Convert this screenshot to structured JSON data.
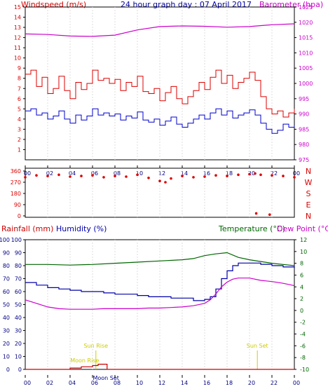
{
  "colors": {
    "wind_speed": "#dd0000",
    "wind_gust": "#dd0000",
    "wind_avg": "#0000cc",
    "barometer": "#cc00cc",
    "direction": "#dd0000",
    "rainfall": "#cc0000",
    "humidity": "#0000aa",
    "temperature": "#006600",
    "dewpoint": "#cc00cc",
    "sun": "#cccc00",
    "frame": "#000000"
  },
  "chart_data": [
    {
      "type": "line",
      "title": "24 hour graph day : 07 April 2017",
      "left_label": "Windspeed (m/s)",
      "right_label": "Barometer (hpa)",
      "ylim_left": [
        0,
        15
      ],
      "ylim_right": [
        975,
        1025
      ],
      "left_ticks": [
        "1",
        "2",
        "3",
        "4",
        "5",
        "6",
        "7",
        "8",
        "9",
        "10",
        "11",
        "12",
        "13",
        "14",
        "15"
      ],
      "right_ticks": [
        "975",
        "980",
        "985",
        "990",
        "995",
        "1000",
        "1005",
        "1010",
        "1015",
        "1020",
        "1025"
      ],
      "x_ticks": [
        "00",
        "02",
        "04",
        "06",
        "08",
        "10",
        "12",
        "14",
        "16",
        "18",
        "20",
        "22",
        "00"
      ],
      "x_hours": [
        0,
        24
      ],
      "series": [
        {
          "key": "gust",
          "hours": [
            0,
            0.5,
            1,
            1.5,
            2,
            2.5,
            3,
            3.5,
            4,
            4.5,
            5,
            5.5,
            6,
            6.5,
            7,
            7.5,
            8,
            8.5,
            9,
            9.5,
            10,
            10.5,
            11,
            11.5,
            12,
            12.5,
            13,
            13.5,
            14,
            14.5,
            15,
            15.5,
            16,
            16.5,
            17,
            17.5,
            18,
            18.5,
            19,
            19.5,
            20,
            20.5,
            21,
            21.5,
            22,
            22.5,
            23,
            23.5,
            24
          ],
          "values": [
            8.4,
            8.8,
            7.2,
            8.1,
            6.5,
            7.0,
            8.2,
            6.8,
            6.0,
            7.6,
            6.9,
            7.5,
            8.8,
            7.8,
            8.0,
            7.5,
            7.9,
            6.8,
            7.6,
            7.2,
            8.2,
            6.7,
            6.5,
            7.0,
            5.8,
            6.6,
            7.2,
            6.0,
            5.5,
            6.2,
            6.8,
            7.6,
            6.9,
            8.1,
            8.8,
            7.5,
            8.3,
            7.0,
            7.6,
            8.0,
            8.6,
            7.8,
            6.2,
            5.0,
            4.5,
            4.8,
            4.2,
            4.6,
            5.0
          ]
        },
        {
          "key": "avg",
          "hours": [
            0,
            0.5,
            1,
            1.5,
            2,
            2.5,
            3,
            3.5,
            4,
            4.5,
            5,
            5.5,
            6,
            6.5,
            7,
            7.5,
            8,
            8.5,
            9,
            9.5,
            10,
            10.5,
            11,
            11.5,
            12,
            12.5,
            13,
            13.5,
            14,
            14.5,
            15,
            15.5,
            16,
            16.5,
            17,
            17.5,
            18,
            18.5,
            19,
            19.5,
            20,
            20.5,
            21,
            21.5,
            22,
            22.5,
            23,
            23.5,
            24
          ],
          "values": [
            4.8,
            5.0,
            4.4,
            4.6,
            4.0,
            4.3,
            4.8,
            4.0,
            3.6,
            4.4,
            3.9,
            4.3,
            5.0,
            4.4,
            4.6,
            4.3,
            4.5,
            3.9,
            4.3,
            4.1,
            4.7,
            3.9,
            3.7,
            4.0,
            3.4,
            3.8,
            4.2,
            3.5,
            3.2,
            3.6,
            4.0,
            4.4,
            4.0,
            4.6,
            5.0,
            4.4,
            4.8,
            4.1,
            4.4,
            4.6,
            4.9,
            4.4,
            3.6,
            3.0,
            2.6,
            2.9,
            3.5,
            3.2,
            3.3
          ]
        },
        {
          "key": "baro",
          "hours": [
            0,
            2,
            4,
            6,
            8,
            10,
            12,
            14,
            16,
            18,
            20,
            22,
            24
          ],
          "values": [
            1016.2,
            1016.0,
            1015.5,
            1015.4,
            1015.8,
            1017.5,
            1018.6,
            1018.8,
            1018.7,
            1018.4,
            1018.6,
            1019.2,
            1019.5
          ]
        }
      ]
    },
    {
      "type": "scatter",
      "ylim": [
        0,
        360
      ],
      "left_ticks": [
        "0",
        "90",
        "180",
        "270",
        "360"
      ],
      "compass": [
        "N",
        "W",
        "S",
        "E",
        "N"
      ],
      "x_hours": [
        0,
        24
      ],
      "series": [
        {
          "key": "direction",
          "hours": [
            0,
            1,
            2,
            3,
            4,
            5,
            6,
            7,
            8,
            9,
            10,
            11,
            12,
            12.5,
            13,
            14,
            15,
            16,
            17,
            18,
            19,
            20,
            20.5,
            21,
            22,
            23,
            24
          ],
          "values": [
            310,
            325,
            320,
            330,
            315,
            320,
            325,
            310,
            320,
            315,
            330,
            305,
            280,
            270,
            300,
            320,
            310,
            315,
            325,
            320,
            330,
            335,
            340,
            330,
            325,
            320,
            310
          ]
        },
        {
          "key": "outliers",
          "hours": [
            20.6,
            21.8
          ],
          "values": [
            20,
            10
          ]
        }
      ]
    },
    {
      "type": "line",
      "left_label_1": "Rainfall (mm)",
      "left_label_2": "Humidity (%)",
      "right_label_1": "Temperature (°C)",
      "right_label_2": "Dew Point (°C)",
      "ylim_rain": [
        0,
        100
      ],
      "ylim_hum": [
        0,
        100
      ],
      "ylim_temp": [
        -10,
        12
      ],
      "rain_ticks": [
        "0",
        "10",
        "20",
        "30",
        "40",
        "50",
        "60",
        "70",
        "80",
        "90",
        "100"
      ],
      "hum_ticks": [
        "0",
        "10",
        "20",
        "30",
        "40",
        "50",
        "60",
        "70",
        "80",
        "90",
        "100"
      ],
      "temp_ticks": [
        "-10",
        "-8",
        "-6",
        "-4",
        "-2",
        "0",
        "2",
        "4",
        "6",
        "8",
        "10",
        "12"
      ],
      "x_ticks": [
        "00",
        "02",
        "04",
        "06",
        "08",
        "10",
        "12",
        "14",
        "16",
        "18",
        "20",
        "22",
        "00"
      ],
      "x_hours": [
        0,
        24
      ],
      "annotations": [
        "Sun Rise",
        "Moon Rise",
        "Moon Set",
        "Sun Set"
      ],
      "annotation_hours": [
        6.3,
        5.3,
        7.2,
        20.7
      ],
      "series": [
        {
          "key": "temp",
          "hours": [
            0,
            2,
            4,
            6,
            8,
            10,
            12,
            14,
            15,
            16,
            17,
            18,
            19,
            20,
            21,
            22,
            23,
            24
          ],
          "values": [
            7.8,
            7.8,
            7.7,
            7.8,
            8.0,
            8.2,
            8.4,
            8.6,
            8.8,
            9.3,
            9.6,
            9.8,
            9.0,
            8.6,
            8.3,
            8.0,
            7.8,
            7.6
          ]
        },
        {
          "key": "humidity",
          "hours": [
            0,
            1,
            2,
            3,
            4,
            5,
            6,
            7,
            8,
            9,
            10,
            11,
            12,
            13,
            14,
            15,
            16,
            16.5,
            17,
            17.5,
            18,
            18.5,
            19,
            20,
            21,
            22,
            23,
            24
          ],
          "values": [
            67,
            65,
            63,
            62,
            61,
            60,
            60,
            59,
            58,
            58,
            57,
            56,
            56,
            55,
            55,
            53,
            54,
            56,
            62,
            70,
            76,
            80,
            82,
            82,
            81,
            80,
            79,
            78
          ]
        },
        {
          "key": "dewpoint",
          "hours": [
            0,
            1,
            2,
            3,
            4,
            5,
            6,
            7,
            8,
            9,
            10,
            11,
            12,
            13,
            14,
            15,
            16,
            16.5,
            17,
            17.5,
            18,
            18.5,
            19,
            20,
            21,
            22,
            23,
            24
          ],
          "values": [
            1.8,
            1.2,
            0.6,
            0.3,
            0.2,
            0.2,
            0.2,
            0.3,
            0.3,
            0.3,
            0.3,
            0.4,
            0.4,
            0.5,
            0.6,
            0.8,
            1.2,
            1.8,
            2.8,
            4.0,
            4.8,
            5.3,
            5.5,
            5.5,
            5.1,
            4.9,
            4.6,
            4.2
          ]
        },
        {
          "key": "rain",
          "hours": [
            0,
            3,
            4,
            5,
            6,
            6.5,
            7,
            7.3,
            24
          ],
          "values": [
            0,
            0,
            1,
            2,
            3,
            4,
            4,
            0,
            0
          ]
        }
      ]
    }
  ]
}
